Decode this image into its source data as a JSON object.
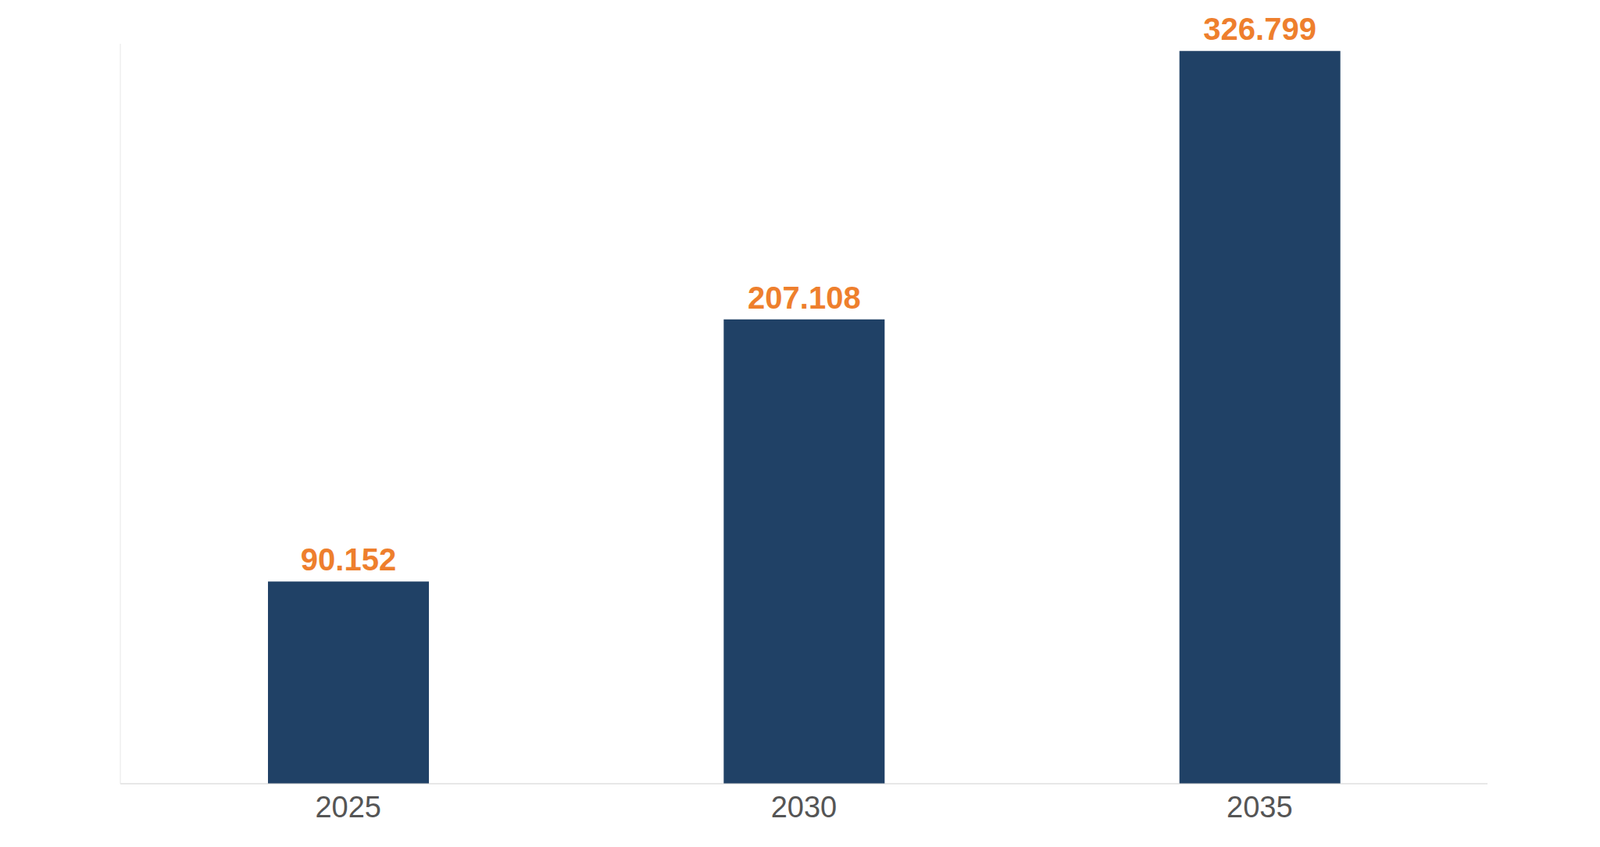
{
  "chart_data": {
    "type": "bar",
    "categories": [
      "2025",
      "2030",
      "2035"
    ],
    "values": [
      90.152,
      207.108,
      326.799
    ],
    "color": "#204166",
    "ylim": [
      0,
      330
    ],
    "yticks": [],
    "data_labels": true,
    "tick_labels": "x",
    "grid": false
  }
}
